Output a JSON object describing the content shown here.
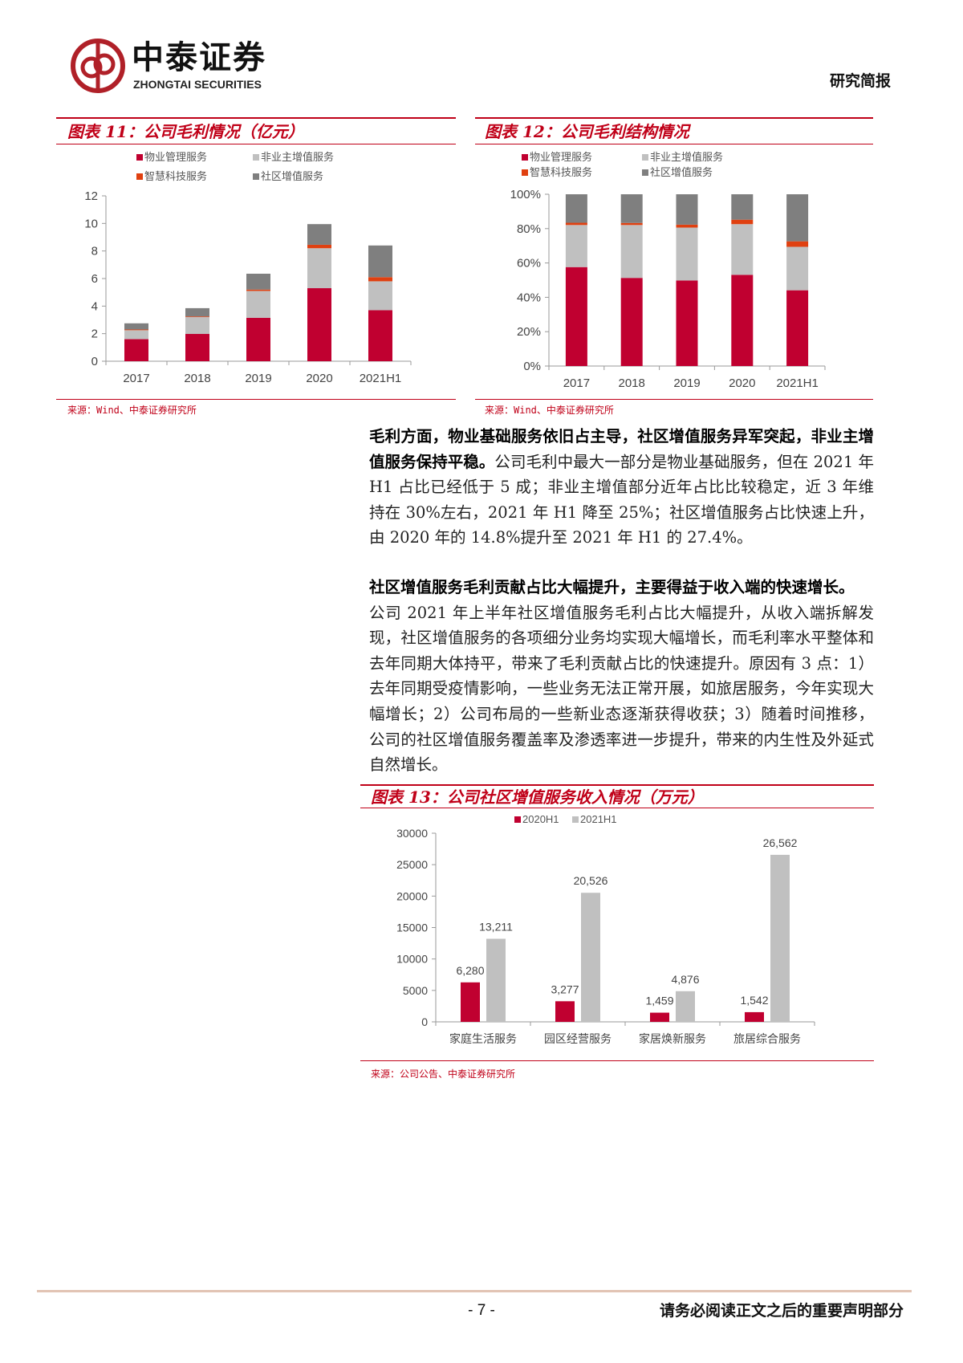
{
  "header": {
    "logo_cn": "中泰证券",
    "logo_en": "ZHONGTAI SECURITIES",
    "doc_type": "研究简报"
  },
  "colors": {
    "brand": "#c00018",
    "red": "#c00030",
    "light_gray": "#c0c0c0",
    "orange": "#e04010",
    "dark_gray": "#7f7f7f"
  },
  "fig11": {
    "title": "图表 11：公司毛利情况（亿元）",
    "source": "来源：Wind、中泰证券研究所"
  },
  "fig12": {
    "title": "图表 12：公司毛利结构情况",
    "source": "来源：Wind、中泰证券研究所"
  },
  "fig13": {
    "title": "图表 13：公司社区增值服务收入情况（万元）",
    "source": "来源：公司公告、中泰证券研究所"
  },
  "para1": {
    "bold": "毛利方面，物业基础服务依旧占主导，社区增值服务异军突起，非业主增值服务保持平稳。",
    "text": "公司毛利中最大一部分是物业基础服务，但在 2021 年 H1 占比已经低于 5 成；非业主增值部分近年占比比较稳定，近 3 年维持在 30%左右，2021 年 H1 降至 25%；社区增值服务占比快速上升，由 2020 年的 14.8%提升至 2021 年 H1 的 27.4%。"
  },
  "para2": {
    "bold": "社区增值服务毛利贡献占比大幅提升，主要得益于收入端的快速增长。",
    "text": "公司 2021 年上半年社区增值服务毛利占比大幅提升，从收入端拆解发现，社区增值服务的各项细分业务均实现大幅增长，而毛利率水平整体和去年同期大体持平，带来了毛利贡献占比的快速提升。原因有 3 点：1）去年同期受疫情影响，一些业务无法正常开展，如旅居服务，今年实现大幅增长；2）公司布局的一些新业态逐渐获得收获；3）随着时间推移，公司的社区增值服务覆盖率及渗透率进一步提升，带来的内生性及外延式自然增长。"
  },
  "footer": {
    "page": "- 7 -",
    "disclaimer": "请务必阅读正文之后的重要声明部分"
  },
  "chart_data": [
    {
      "type": "bar",
      "stacked": true,
      "categories": [
        "2017",
        "2018",
        "2019",
        "2020",
        "2021H1"
      ],
      "series": [
        {
          "name": "物业管理服务",
          "color": "#c00030",
          "values": [
            1.6,
            1.98,
            3.15,
            5.3,
            3.7
          ]
        },
        {
          "name": "非业主增值服务",
          "color": "#c0c0c0",
          "values": [
            0.65,
            1.22,
            1.95,
            2.9,
            2.1
          ]
        },
        {
          "name": "智慧科技服务",
          "color": "#e04010",
          "values": [
            0.05,
            0.05,
            0.1,
            0.25,
            0.3
          ]
        },
        {
          "name": "社区增值服务",
          "color": "#7f7f7f",
          "values": [
            0.45,
            0.6,
            1.15,
            1.5,
            2.3
          ]
        }
      ],
      "ylim": [
        0,
        12
      ],
      "yticks": [
        "0",
        "2",
        "4",
        "6",
        "8",
        "10",
        "12"
      ],
      "legend": "top",
      "grid": false
    },
    {
      "type": "bar",
      "stacked": true,
      "percent": true,
      "categories": [
        "2017",
        "2018",
        "2019",
        "2020",
        "2021H1"
      ],
      "series": [
        {
          "name": "物业管理服务",
          "color": "#c00030",
          "values": [
            57.6,
            51.3,
            49.8,
            53.1,
            44.1
          ]
        },
        {
          "name": "非业主增值服务",
          "color": "#c0c0c0",
          "values": [
            24.5,
            30.8,
            30.8,
            29.5,
            25.3
          ]
        },
        {
          "name": "智慧科技服务",
          "color": "#e04010",
          "values": [
            1.3,
            1.2,
            1.7,
            2.6,
            3.2
          ]
        },
        {
          "name": "社区增值服务",
          "color": "#7f7f7f",
          "values": [
            16.6,
            16.7,
            17.7,
            14.8,
            27.4
          ]
        }
      ],
      "ylim": [
        0,
        100
      ],
      "yticks": [
        "0%",
        "20%",
        "40%",
        "60%",
        "80%",
        "100%"
      ],
      "legend": "top",
      "grid": false
    },
    {
      "type": "bar",
      "categories": [
        "家庭生活服务",
        "园区经营服务",
        "家居焕新服务",
        "旅居综合服务"
      ],
      "series": [
        {
          "name": "2020H1",
          "color": "#c00030",
          "values": [
            6280,
            3277,
            1459,
            1542
          ],
          "labels": [
            "6,280",
            "3,277",
            "1,459",
            "1,542"
          ]
        },
        {
          "name": "2021H1",
          "color": "#c0c0c0",
          "values": [
            13211,
            20526,
            4876,
            26562
          ],
          "labels": [
            "13,211",
            "20,526",
            "4,876",
            "26,562"
          ]
        }
      ],
      "ylim": [
        0,
        30000
      ],
      "yticks": [
        "0",
        "5000",
        "10000",
        "15000",
        "20000",
        "25000",
        "30000"
      ],
      "legend": "top",
      "grid": false
    }
  ]
}
